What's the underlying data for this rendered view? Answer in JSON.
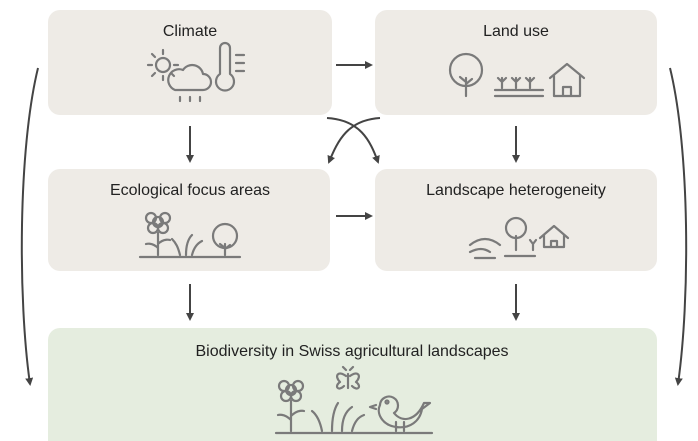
{
  "nodes": [
    {
      "label": "Climate"
    },
    {
      "label": "Land use"
    },
    {
      "label": "Ecological focus areas"
    },
    {
      "label": "Landscape heterogeneity"
    },
    {
      "label": "Biodiversity in Swiss agricultural landscapes"
    }
  ]
}
